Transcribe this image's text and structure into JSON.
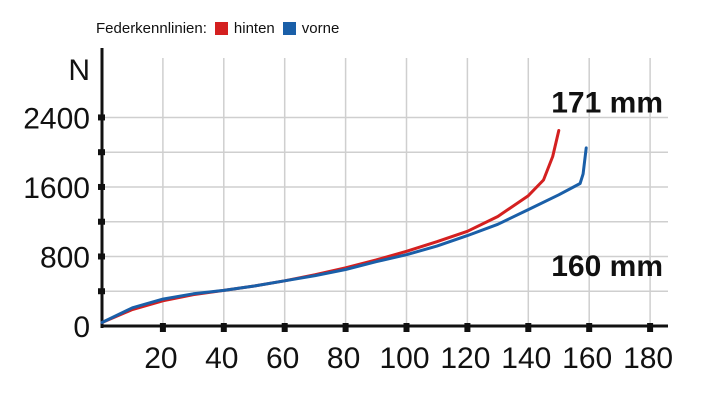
{
  "legend": {
    "prefix": "Federkennlinien:",
    "items": [
      {
        "label": "hinten",
        "color": "#d42020"
      },
      {
        "label": "vorne",
        "color": "#1a5fa8"
      }
    ]
  },
  "chart_data": {
    "type": "line",
    "xlabel": "",
    "ylabel": "N",
    "xlim": [
      0,
      180
    ],
    "ylim": [
      0,
      2800
    ],
    "x_ticks": [
      20,
      40,
      60,
      80,
      100,
      120,
      140,
      160,
      180
    ],
    "y_ticks": [
      0,
      800,
      1600,
      2400
    ],
    "grid": true,
    "series": [
      {
        "name": "hinten",
        "color": "#d42020",
        "points": [
          [
            0,
            40
          ],
          [
            10,
            190
          ],
          [
            20,
            290
          ],
          [
            30,
            360
          ],
          [
            40,
            410
          ],
          [
            50,
            460
          ],
          [
            60,
            520
          ],
          [
            70,
            590
          ],
          [
            80,
            670
          ],
          [
            90,
            760
          ],
          [
            100,
            860
          ],
          [
            110,
            970
          ],
          [
            120,
            1090
          ],
          [
            130,
            1260
          ],
          [
            140,
            1500
          ],
          [
            145,
            1680
          ],
          [
            148,
            1950
          ],
          [
            150,
            2250
          ]
        ]
      },
      {
        "name": "vorne",
        "color": "#1a5fa8",
        "points": [
          [
            0,
            40
          ],
          [
            10,
            210
          ],
          [
            20,
            310
          ],
          [
            30,
            370
          ],
          [
            40,
            410
          ],
          [
            50,
            460
          ],
          [
            60,
            520
          ],
          [
            70,
            580
          ],
          [
            80,
            650
          ],
          [
            90,
            740
          ],
          [
            100,
            820
          ],
          [
            110,
            920
          ],
          [
            120,
            1040
          ],
          [
            130,
            1170
          ],
          [
            140,
            1340
          ],
          [
            150,
            1510
          ],
          [
            157,
            1640
          ],
          [
            158,
            1750
          ],
          [
            159,
            2050
          ]
        ]
      }
    ],
    "annotations": [
      {
        "text": "171 mm",
        "x": 152,
        "y": 2570
      },
      {
        "text": "160 mm",
        "x": 152,
        "y": 690
      }
    ]
  }
}
